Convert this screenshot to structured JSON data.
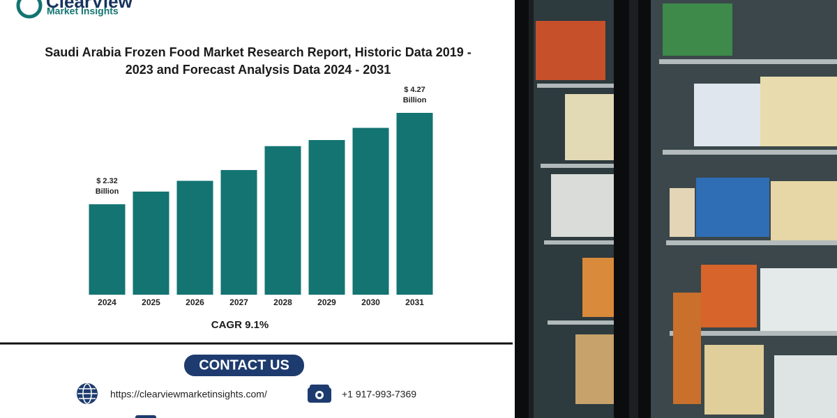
{
  "logo": {
    "name": "ClearView",
    "tagline": "Market Insights"
  },
  "chart_data": {
    "type": "bar",
    "title": "Saudi Arabia Frozen Food Market Research Report, Historic Data 2019 - 2023 and Forecast Analysis Data 2024 - 2031",
    "categories": [
      "2024",
      "2025",
      "2026",
      "2027",
      "2028",
      "2029",
      "2030",
      "2031"
    ],
    "values": [
      2.32,
      2.59,
      2.82,
      3.05,
      3.56,
      3.69,
      3.95,
      4.27
    ],
    "value_labels": [
      "$ 2.32 Billion",
      null,
      null,
      null,
      null,
      null,
      null,
      "$ 4.27 Billion"
    ],
    "color": "#137472",
    "ylim": [
      0.39,
      4.85
    ],
    "annotation": "CAGR 9.1%"
  },
  "contact": {
    "heading": "CONTACT US",
    "url": "https://clearviewmarketinsights.com/",
    "phone": "+1 917-993-7369"
  }
}
